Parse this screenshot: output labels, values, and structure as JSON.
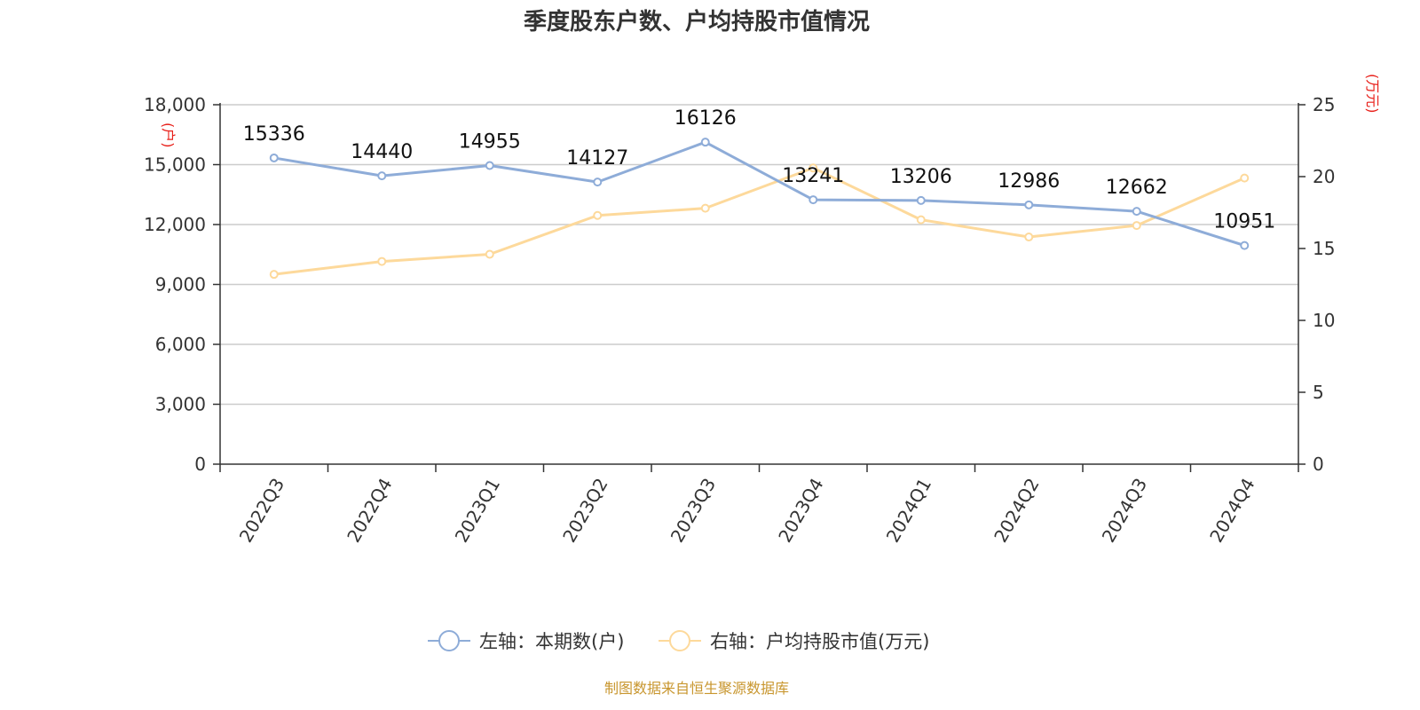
{
  "chart_data": {
    "type": "line",
    "title": "季度股东户数、户均持股市值情况",
    "categories": [
      "2022Q3",
      "2022Q4",
      "2023Q1",
      "2023Q2",
      "2023Q3",
      "2023Q4",
      "2024Q1",
      "2024Q2",
      "2024Q3",
      "2024Q4"
    ],
    "left_axis": {
      "unit": "(户)",
      "min": 0,
      "max": 18000,
      "ticks": [
        "0",
        "3,000",
        "6,000",
        "9,000",
        "12,000",
        "15,000",
        "18,000"
      ]
    },
    "right_axis": {
      "unit": "(万元)",
      "min": 0,
      "max": 25,
      "ticks": [
        "0",
        "5",
        "10",
        "15",
        "20",
        "25"
      ]
    },
    "series": [
      {
        "name": "左轴：本期数(户)",
        "axis": "left",
        "color": "#8eacd8",
        "values": [
          15336,
          14440,
          14955,
          14127,
          16126,
          13241,
          13206,
          12986,
          12662,
          10951
        ],
        "labels": [
          "15336",
          "14440",
          "14955",
          "14127",
          "16126",
          "13241",
          "13206",
          "12986",
          "12662",
          "10951"
        ]
      },
      {
        "name": "右轴：户均持股市值(万元)",
        "axis": "right",
        "color": "#fdd99b",
        "values": [
          13.2,
          14.1,
          14.6,
          17.3,
          17.8,
          20.6,
          17.0,
          15.8,
          16.6,
          19.9
        ]
      }
    ],
    "grid": true,
    "legend_position": "bottom-center"
  },
  "source": "制图数据来自恒生聚源数据库"
}
